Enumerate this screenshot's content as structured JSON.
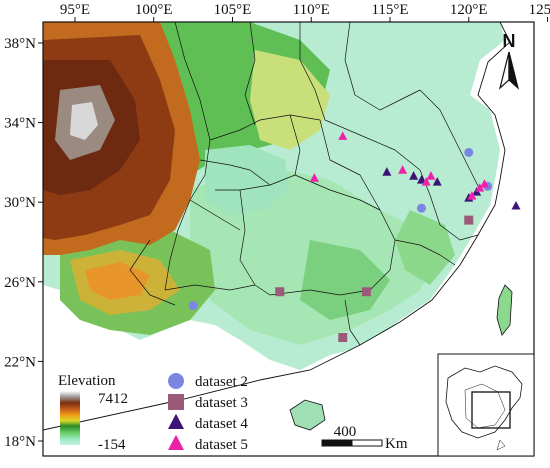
{
  "map": {
    "x_ticks": [
      "95°E",
      "100°E",
      "105°E",
      "110°E",
      "115°E",
      "120°E",
      "125°E"
    ],
    "y_ticks": [
      "38°N",
      "34°N",
      "30°N",
      "26°N",
      "22°N",
      "18°N"
    ],
    "north_label": "N",
    "elevation": {
      "title": "Elevation",
      "max": "7412",
      "min": "-154",
      "colors": [
        "#ffffff",
        "#a0a0a0",
        "#7a2f10",
        "#c9641a",
        "#f0a018",
        "#d8d828",
        "#2a8a2a",
        "#6ad06a",
        "#a0eac8",
        "#c8f0e0"
      ]
    },
    "scale_bar": {
      "value": "400",
      "unit": "Km"
    },
    "legend": [
      {
        "label": "dataset 2",
        "shape": "circle",
        "color": "#7b86e0"
      },
      {
        "label": "dataset 3",
        "shape": "square",
        "color": "#9a5a78"
      },
      {
        "label": "dataset 4",
        "shape": "triangle",
        "color": "#3c1478"
      },
      {
        "label": "dataset 5",
        "shape": "triangle",
        "color": "#ee22aa"
      }
    ],
    "sites": {
      "dataset_2": [
        [
          102.5,
          24.8
        ],
        [
          117.0,
          29.7
        ],
        [
          120.0,
          32.5
        ],
        [
          121.2,
          30.8
        ]
      ],
      "dataset_3": [
        [
          108.0,
          25.5
        ],
        [
          113.5,
          25.5
        ],
        [
          112.0,
          23.2
        ],
        [
          120.0,
          29.1
        ]
      ],
      "dataset_4": [
        [
          114.8,
          31.5
        ],
        [
          116.5,
          31.3
        ],
        [
          117.0,
          31.1
        ],
        [
          118.0,
          31.0
        ],
        [
          120.0,
          30.2
        ],
        [
          120.5,
          30.5
        ],
        [
          123.0,
          29.8
        ]
      ],
      "dataset_5": [
        [
          112.0,
          33.3
        ],
        [
          110.2,
          31.2
        ],
        [
          115.8,
          31.6
        ],
        [
          117.3,
          31.0
        ],
        [
          117.6,
          31.3
        ],
        [
          120.2,
          30.3
        ],
        [
          120.7,
          30.7
        ],
        [
          121.0,
          30.9
        ]
      ]
    }
  }
}
